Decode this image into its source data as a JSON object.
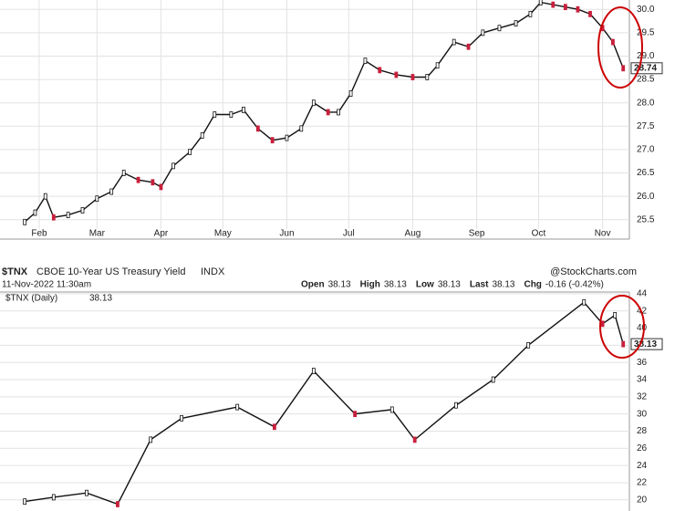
{
  "chart_data": [
    {
      "type": "line",
      "x": [
        0,
        5,
        10,
        14,
        21,
        28,
        35,
        42,
        48,
        55,
        62,
        66,
        72,
        80,
        86,
        92,
        100,
        106,
        113,
        120,
        127,
        134,
        140,
        147,
        152,
        158,
        165,
        172,
        180,
        188,
        195,
        200,
        208,
        215,
        222,
        230,
        238,
        245,
        250,
        256,
        262,
        268,
        274,
        280,
        285,
        290
      ],
      "series": [
        {
          "name": null,
          "color": "#111111",
          "values": [
            25.45,
            25.65,
            26.0,
            25.55,
            25.6,
            25.7,
            25.95,
            26.1,
            26.5,
            26.35,
            26.3,
            26.2,
            26.65,
            26.95,
            27.3,
            27.75,
            27.75,
            27.85,
            27.45,
            27.2,
            27.25,
            27.45,
            28.0,
            27.8,
            27.8,
            28.2,
            28.9,
            28.7,
            28.6,
            28.55,
            28.55,
            28.8,
            29.3,
            29.2,
            29.5,
            29.6,
            29.7,
            29.9,
            30.15,
            30.1,
            30.05,
            30.0,
            29.9,
            29.6,
            29.3,
            28.74
          ]
        }
      ],
      "xlim": [
        -12,
        293
      ],
      "xticks": [
        {
          "value": 7,
          "label": "Feb"
        },
        {
          "value": 35,
          "label": "Mar"
        },
        {
          "value": 66,
          "label": "Apr"
        },
        {
          "value": 96,
          "label": "May"
        },
        {
          "value": 127,
          "label": "Jun"
        },
        {
          "value": 157,
          "label": "Jul"
        },
        {
          "value": 188,
          "label": "Aug"
        },
        {
          "value": 219,
          "label": "Sep"
        },
        {
          "value": 249,
          "label": "Oct"
        },
        {
          "value": 280,
          "label": "Nov"
        }
      ],
      "ylim": [
        25.3,
        30.2
      ],
      "yticks": [
        {
          "value": 25.5,
          "label": "25.5"
        },
        {
          "value": 26,
          "label": "26.0"
        },
        {
          "value": 26.5,
          "label": "26.5"
        },
        {
          "value": 27,
          "label": "27.0"
        },
        {
          "value": 27.5,
          "label": "27.5"
        },
        {
          "value": 28,
          "label": "28.0"
        },
        {
          "value": 28.5,
          "label": "28.5"
        },
        {
          "value": 29,
          "label": "29.0"
        },
        {
          "value": 29.5,
          "label": "29.5"
        },
        {
          "value": 30,
          "label": "30.0"
        }
      ],
      "grid": true
    },
    {
      "type": "line",
      "symbol": "$TNX",
      "title": "CBOE 10-Year US Treasury Yield",
      "exchange": "INDX",
      "source": "@StockCharts.com",
      "date": "11-Nov-2022 11:30am",
      "quote": {
        "open_label": "Open",
        "open": 38.13,
        "high_label": "High",
        "high": 38.13,
        "low_label": "Low",
        "low": 38.13,
        "last_label": "Last",
        "last": 38.13,
        "chg_label": "Chg",
        "chg": "-0.16 (-0.42%)"
      },
      "x": [
        0,
        14,
        30,
        45,
        61,
        76,
        103,
        121,
        140,
        160,
        178,
        189,
        209,
        227,
        244,
        271,
        280,
        286,
        290
      ],
      "series": [
        {
          "name": "$TNX (Daily)",
          "color": "#111111",
          "values": [
            19.8,
            20.3,
            20.8,
            19.5,
            27,
            29.5,
            30.8,
            28.5,
            35,
            30,
            30.5,
            27,
            31,
            34,
            38,
            43,
            40.5,
            41.5,
            38.13
          ]
        }
      ],
      "xlim": [
        -12,
        293
      ],
      "ylim": [
        18.7,
        44.2
      ],
      "yticks": [
        20,
        22,
        24,
        26,
        28,
        30,
        32,
        34,
        36,
        38,
        40,
        42,
        44
      ],
      "grid": true
    }
  ]
}
